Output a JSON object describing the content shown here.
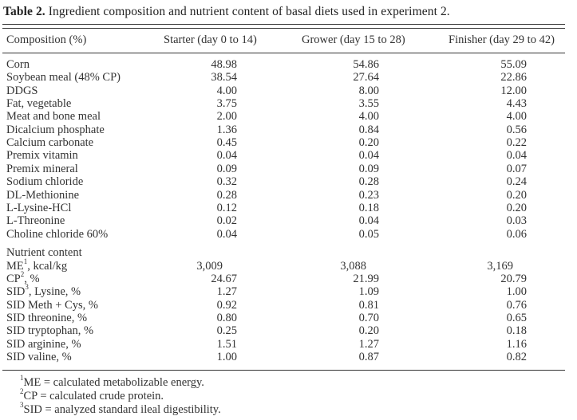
{
  "caption": {
    "label": "Table 2.",
    "text": " Ingredient composition and nutrient content of basal diets used in experiment 2."
  },
  "header": {
    "col0": "Composition (%)",
    "col1": "Starter (day 0 to 14)",
    "col2": "Grower (day 15 to 28)",
    "col3": "Finisher (day 29 to 42)"
  },
  "ingredients": [
    {
      "name": "Corn",
      "starter": "48.98",
      "grower": "54.86",
      "finisher": "55.09"
    },
    {
      "name": "Soybean meal (48% CP)",
      "starter": "38.54",
      "grower": "27.64",
      "finisher": "22.86"
    },
    {
      "name": "DDGS",
      "starter": "4.00",
      "grower": "8.00",
      "finisher": "12.00"
    },
    {
      "name": "Fat, vegetable",
      "starter": "3.75",
      "grower": "3.55",
      "finisher": "4.43"
    },
    {
      "name": "Meat and bone meal",
      "starter": "2.00",
      "grower": "4.00",
      "finisher": "4.00"
    },
    {
      "name": "Dicalcium phosphate",
      "starter": "1.36",
      "grower": "0.84",
      "finisher": "0.56"
    },
    {
      "name": "Calcium carbonate",
      "starter": "0.45",
      "grower": "0.20",
      "finisher": "0.22"
    },
    {
      "name": "Premix vitamin",
      "starter": "0.04",
      "grower": "0.04",
      "finisher": "0.04"
    },
    {
      "name": "Premix mineral",
      "starter": "0.09",
      "grower": "0.09",
      "finisher": "0.07"
    },
    {
      "name": "Sodium chloride",
      "starter": "0.32",
      "grower": "0.28",
      "finisher": "0.24"
    },
    {
      "name": "DL-Methionine",
      "starter": "0.28",
      "grower": "0.23",
      "finisher": "0.20"
    },
    {
      "name": "L-Lysine-HCl",
      "starter": "0.12",
      "grower": "0.18",
      "finisher": "0.20"
    },
    {
      "name": "L-Threonine",
      "starter": "0.02",
      "grower": "0.04",
      "finisher": "0.03"
    },
    {
      "name": "Choline chloride 60%",
      "starter": "0.04",
      "grower": "0.05",
      "finisher": "0.06"
    }
  ],
  "nutrient_heading": "Nutrient content",
  "nutrients": [
    {
      "name": "ME",
      "sup": "1",
      "suffix": ", kcal/kg",
      "starter": "3,009",
      "grower": "3,088",
      "finisher": "3,169"
    },
    {
      "name": "CP",
      "sup": "2",
      "suffix": ", %",
      "starter": "24.67",
      "grower": "21.99",
      "finisher": "20.79"
    },
    {
      "name": "SID",
      "sup": "3",
      "suffix": ", Lysine, %",
      "starter": "1.27",
      "grower": "1.09",
      "finisher": "1.00"
    },
    {
      "name": "SID Meth + Cys, %",
      "sup": "",
      "suffix": "",
      "starter": "0.92",
      "grower": "0.81",
      "finisher": "0.76"
    },
    {
      "name": "SID threonine, %",
      "sup": "",
      "suffix": "",
      "starter": "0.80",
      "grower": "0.70",
      "finisher": "0.65"
    },
    {
      "name": "SID tryptophan, %",
      "sup": "",
      "suffix": "",
      "starter": "0.25",
      "grower": "0.20",
      "finisher": "0.18"
    },
    {
      "name": "SID arginine, %",
      "sup": "",
      "suffix": "",
      "starter": "1.51",
      "grower": "1.27",
      "finisher": "1.16"
    },
    {
      "name": "SID valine, %",
      "sup": "",
      "suffix": "",
      "starter": "1.00",
      "grower": "0.87",
      "finisher": "0.82"
    }
  ],
  "footnotes": [
    {
      "mark": "1",
      "text": "ME = calculated metabolizable energy."
    },
    {
      "mark": "2",
      "text": "CP = calculated crude protein."
    },
    {
      "mark": "3",
      "text": "SID = analyzed standard ileal digestibility."
    }
  ]
}
